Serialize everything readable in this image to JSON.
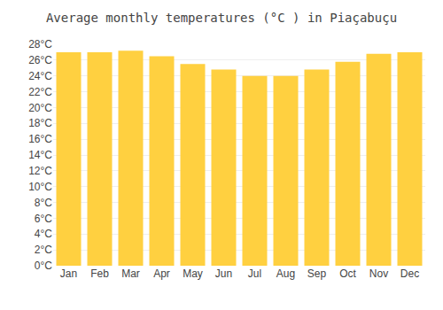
{
  "chart_data": {
    "type": "bar",
    "title": "Average monthly temperatures (°C ) in Piaçabuçu",
    "categories": [
      "Jan",
      "Feb",
      "Mar",
      "Apr",
      "May",
      "Jun",
      "Jul",
      "Aug",
      "Sep",
      "Oct",
      "Nov",
      "Dec"
    ],
    "values": [
      27.0,
      27.0,
      27.2,
      26.5,
      25.5,
      24.8,
      24.0,
      24.0,
      24.8,
      25.8,
      26.8,
      27.0
    ],
    "color": "#FFD040",
    "ylim": [
      0,
      28
    ],
    "yticks": [
      {
        "value": 0,
        "label": "0°C"
      },
      {
        "value": 2,
        "label": "2°C"
      },
      {
        "value": 4,
        "label": "4°C"
      },
      {
        "value": 6,
        "label": "6°C"
      },
      {
        "value": 8,
        "label": "8°C"
      },
      {
        "value": 10,
        "label": "10°C"
      },
      {
        "value": 12,
        "label": "12°C"
      },
      {
        "value": 14,
        "label": "14°C"
      },
      {
        "value": 16,
        "label": "16°C"
      },
      {
        "value": 18,
        "label": "18°C"
      },
      {
        "value": 20,
        "label": "20°C"
      },
      {
        "value": 22,
        "label": "22°C"
      },
      {
        "value": 24,
        "label": "24°C"
      },
      {
        "value": 26,
        "label": "26°C"
      },
      {
        "value": 28,
        "label": "28°C"
      }
    ],
    "grid": true
  }
}
